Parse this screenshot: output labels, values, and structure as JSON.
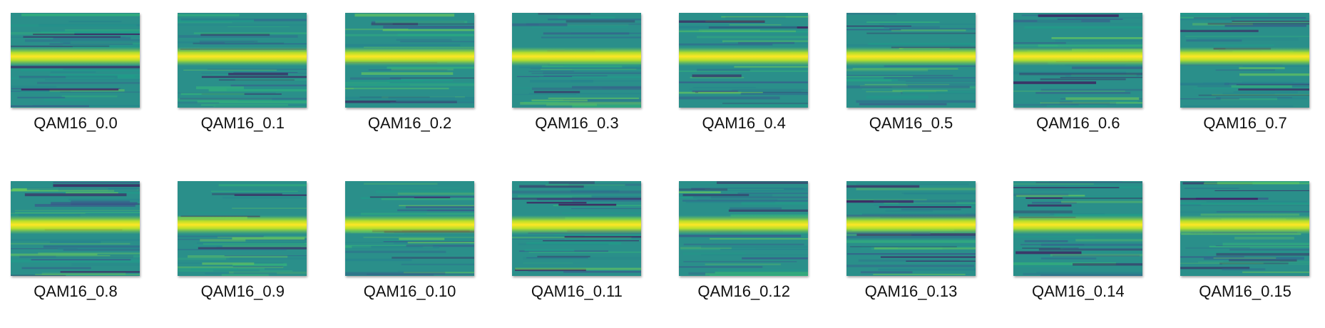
{
  "files": [
    "QAM16_0.0",
    "QAM16_0.1",
    "QAM16_0.2",
    "QAM16_0.3",
    "QAM16_0.4",
    "QAM16_0.5",
    "QAM16_0.6",
    "QAM16_0.7",
    "QAM16_0.8",
    "QAM16_0.9",
    "QAM16_0.10",
    "QAM16_0.11",
    "QAM16_0.12",
    "QAM16_0.13",
    "QAM16_0.14",
    "QAM16_0.15"
  ]
}
